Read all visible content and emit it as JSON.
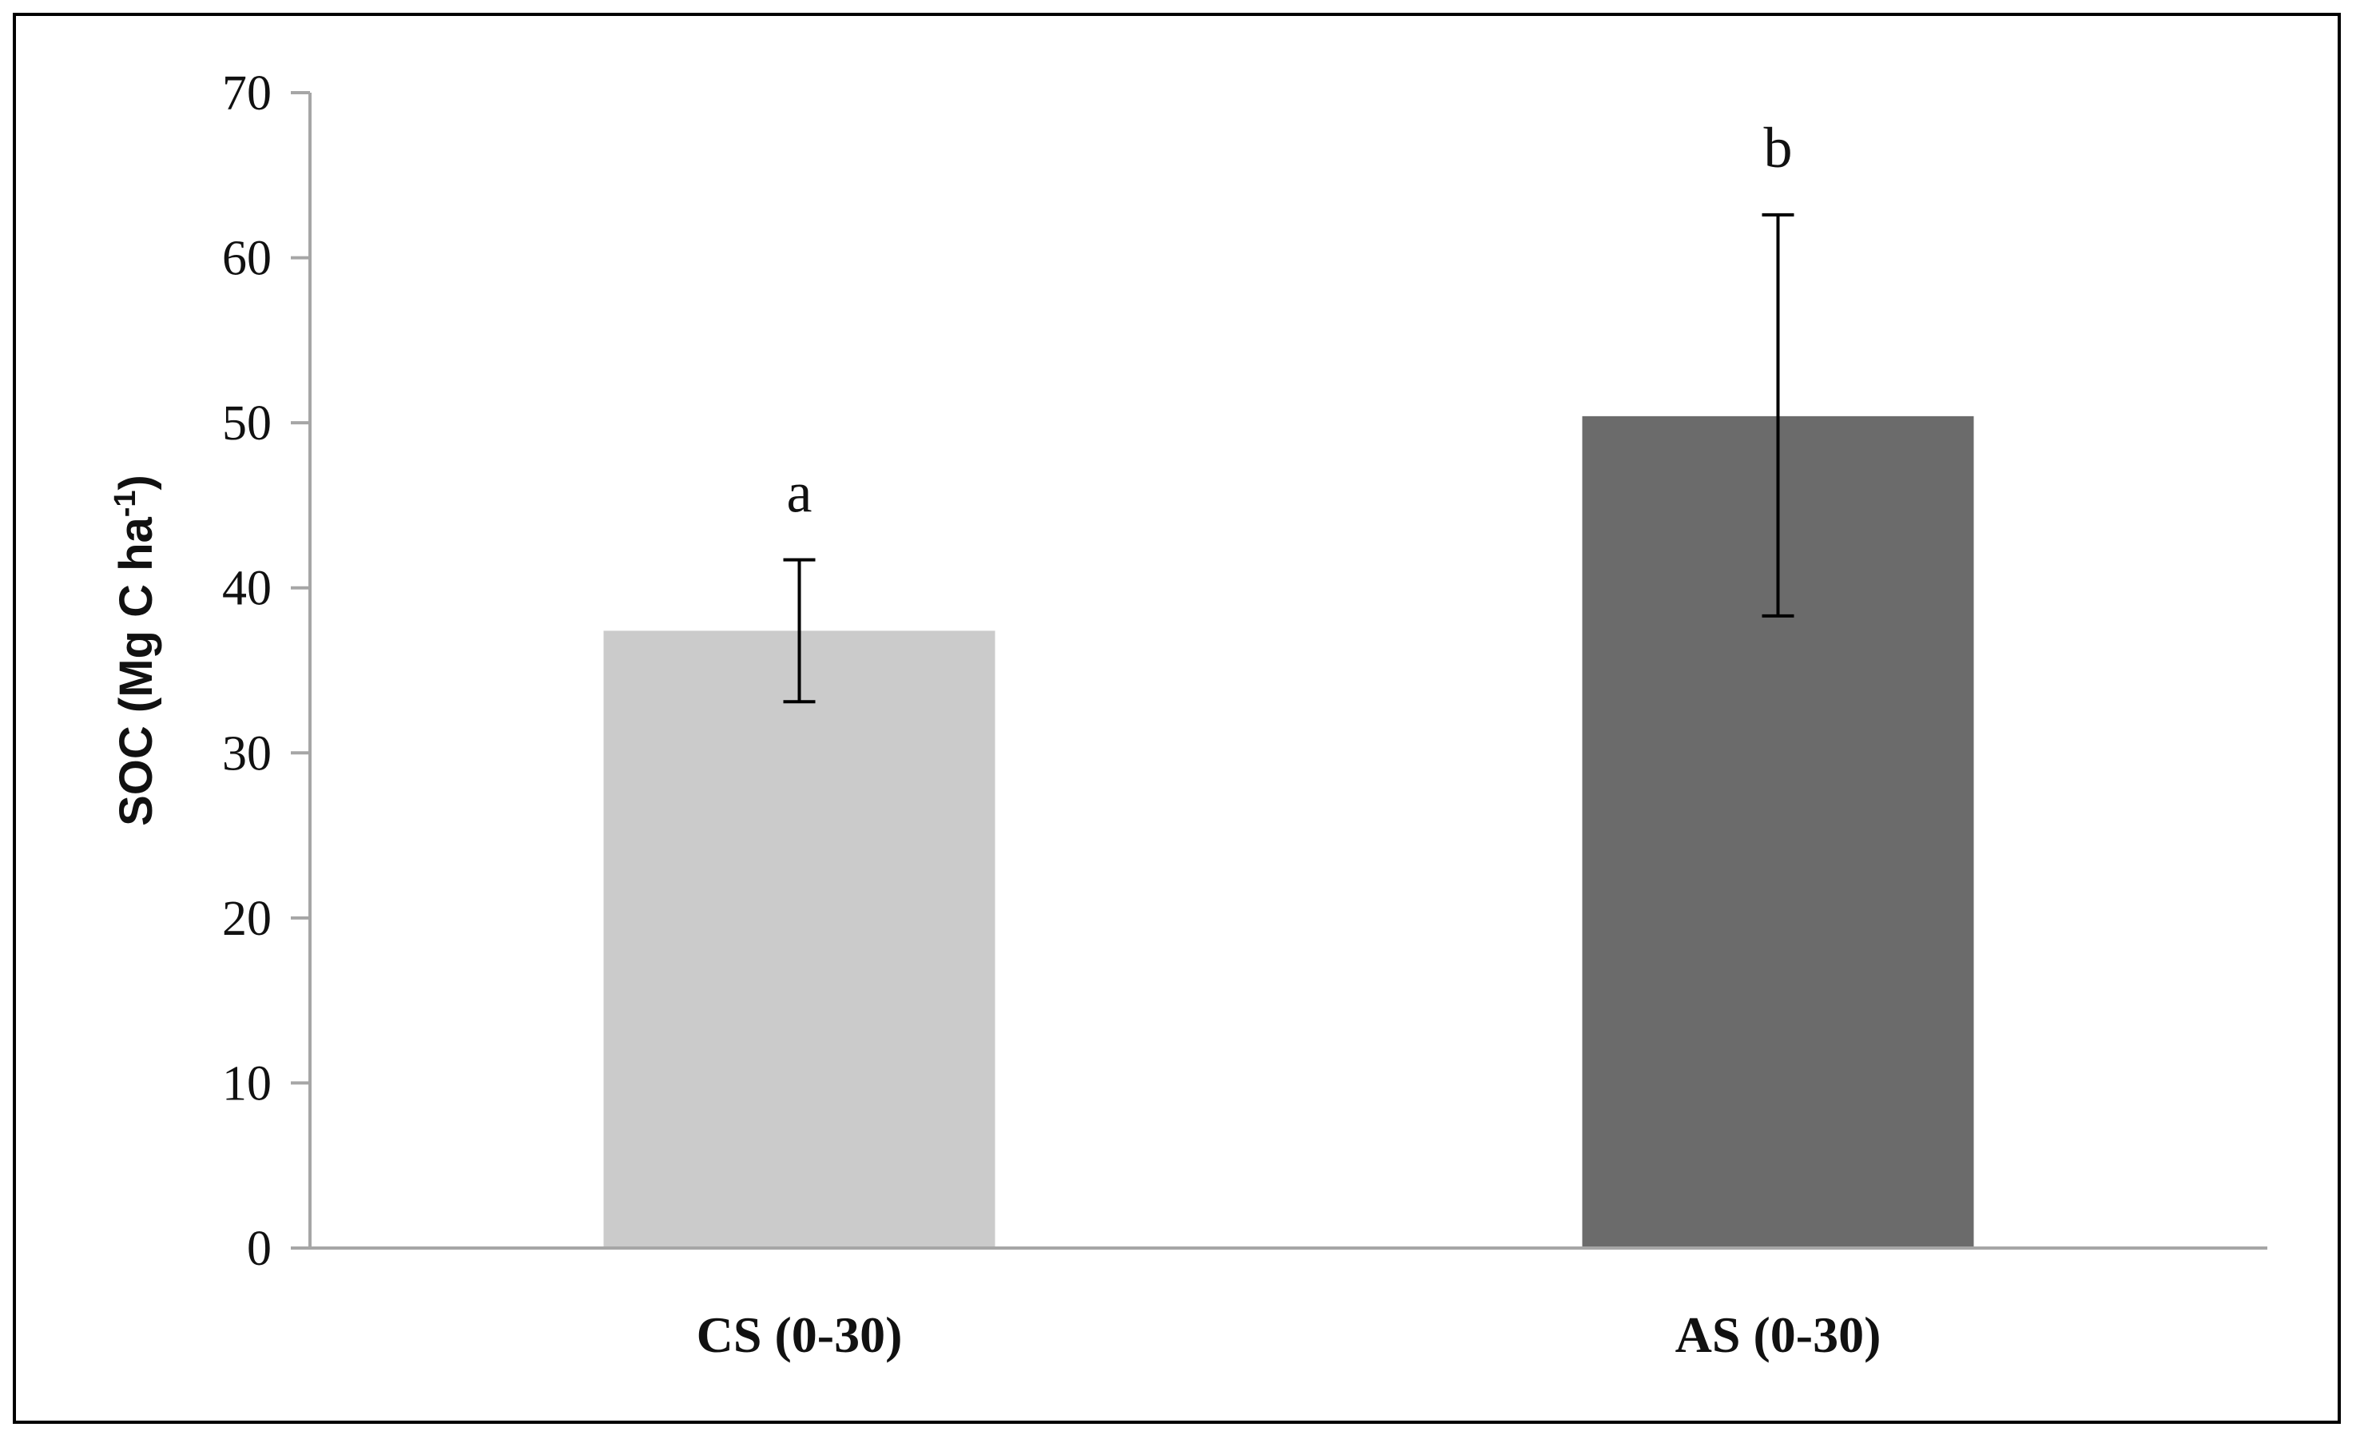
{
  "chart_data": {
    "type": "bar",
    "categories": [
      "CS (0-30)",
      "AS (0-30)"
    ],
    "values": [
      37.4,
      50.4
    ],
    "error_low": [
      33.1,
      38.3
    ],
    "error_high": [
      41.7,
      62.6
    ],
    "significance_letters": [
      "a",
      "b"
    ],
    "bar_colors": [
      "#cbcbcb",
      "#6b6b6b"
    ],
    "axis_color": "#a6a6a6",
    "title": "",
    "xlabel": "",
    "ylabel": "SOC (Mg C ha",
    "ylabel_superscript": "-1",
    "ylabel_suffix": ")",
    "ylim": [
      0,
      70
    ],
    "yticks": [
      0,
      10,
      20,
      30,
      40,
      50,
      60,
      70
    ],
    "grid": false,
    "legend": "none"
  }
}
